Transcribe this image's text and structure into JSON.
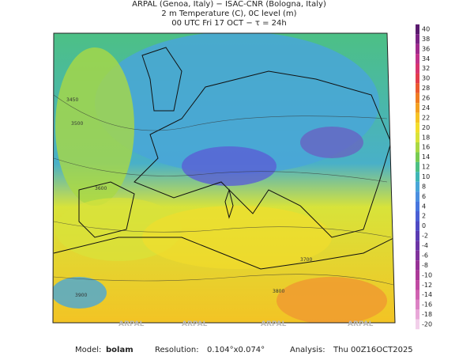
{
  "header": {
    "line1": "ARPAL (Genoa, Italy)  −  ISAC-CNR (Bologna, Italy)",
    "line2": "2 m Temperature (C), 0C level (m)",
    "line3": "00 UTC Fri 17 OCT  −  τ = 24h"
  },
  "colorbar": {
    "ticks": [
      40,
      38,
      36,
      34,
      32,
      30,
      28,
      26,
      24,
      22,
      20,
      18,
      16,
      14,
      12,
      10,
      8,
      6,
      4,
      2,
      0,
      -2,
      -4,
      -6,
      -8,
      -10,
      -12,
      -14,
      -16,
      -18,
      -20
    ],
    "colors": [
      "#5a1a6e",
      "#7a2384",
      "#a02a8c",
      "#c2338a",
      "#d8356e",
      "#e33d4c",
      "#ea5a2f",
      "#ef7d22",
      "#f3a021",
      "#f6c324",
      "#f3de2c",
      "#d8e33a",
      "#a9d845",
      "#77cb52",
      "#4cc084",
      "#3fb6b6",
      "#49a6d8",
      "#4b8fe0",
      "#4876de",
      "#4a5fd4",
      "#4e4ac4",
      "#5a3cb3",
      "#6c35a6",
      "#80339c",
      "#963296",
      "#ab3a98",
      "#c04aa2",
      "#d062b1",
      "#dc82c4",
      "#e8a8d8",
      "#f2d0ea"
    ]
  },
  "map": {
    "watermark": "ARPAL",
    "contour_labels": [
      "3450",
      "3500",
      "3600",
      "3700",
      "3800",
      "3900"
    ]
  },
  "footer": {
    "model_label": "Model:",
    "model": "bolam",
    "resolution_label": "Resolution:",
    "resolution": "0.104°x0.074°",
    "analysis_label": "Analysis:",
    "analysis": "Thu 00Z16OCT2025"
  }
}
